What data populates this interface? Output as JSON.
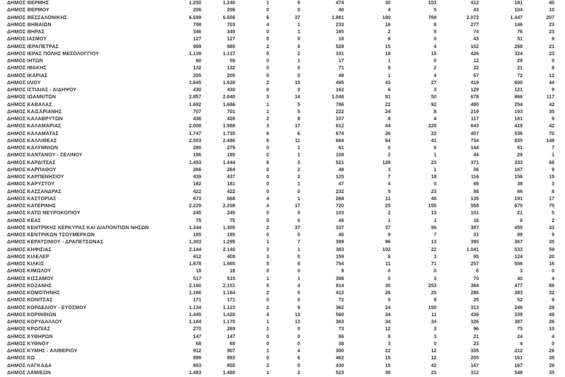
{
  "table": {
    "description": "List of Greek municipalities with numeric statistics, thousands separated by dots as rendered",
    "name_column": "municipality",
    "value_column_count": 10,
    "text_color": "#333338",
    "background_color": "#ffffff",
    "rows": [
      {
        "name": "ΔΗΜΟΣ ΘΕΡΜΗΣ",
        "values": [
          "1.250",
          "1.240",
          "1",
          "9",
          "474",
          "30",
          "103",
          "412",
          "181",
          "40"
        ]
      },
      {
        "name": "ΔΗΜΟΣ ΘΕΡΜΟΥ",
        "values": [
          "206",
          "206",
          "0",
          "0",
          "40",
          "4",
          "5",
          "43",
          "104",
          "10"
        ]
      },
      {
        "name": "ΔΗΜΟΣ ΘΕΣΣΑΛΟΝΙΚΗΣ",
        "values": [
          "6.699",
          "6.656",
          "6",
          "37",
          "1.981",
          "180",
          "769",
          "2.072",
          "1.447",
          "207"
        ]
      },
      {
        "name": "ΔΗΜΟΣ ΘΗΒΑΙΩΝ",
        "values": [
          "708",
          "703",
          "4",
          "1",
          "233",
          "16",
          "8",
          "277",
          "146",
          "23"
        ]
      },
      {
        "name": "ΔΗΜΟΣ ΘΗΡΑΣ",
        "values": [
          "346",
          "345",
          "0",
          "1",
          "165",
          "2",
          "5",
          "74",
          "76",
          "23"
        ]
      },
      {
        "name": "ΔΗΜΟΣ ΙΑΣΜΟΥ",
        "values": [
          "127",
          "127",
          "0",
          "0",
          "18",
          "6",
          "0",
          "43",
          "51",
          "9"
        ]
      },
      {
        "name": "ΔΗΜΟΣ ΙΕΡΑΠΕΤΡΑΣ",
        "values": [
          "999",
          "989",
          "2",
          "8",
          "529",
          "15",
          "4",
          "152",
          "268",
          "21"
        ]
      },
      {
        "name": "ΔΗΜΟΣ ΙΕΡΑΣ ΠΟΛΗΣ ΜΕΣΟΛΟΓΓΙΟΥ",
        "values": [
          "1.139",
          "1.137",
          "0",
          "2",
          "331",
          "18",
          "15",
          "426",
          "324",
          "23"
        ]
      },
      {
        "name": "ΔΗΜΟΣ ΙΗΤΩΝ",
        "values": [
          "60",
          "59",
          "0",
          "1",
          "17",
          "1",
          "0",
          "12",
          "29",
          "0"
        ]
      },
      {
        "name": "ΔΗΜΟΣ ΙΘΑΚΗΣ",
        "values": [
          "132",
          "132",
          "0",
          "0",
          "71",
          "8",
          "2",
          "22",
          "21",
          "8"
        ]
      },
      {
        "name": "ΔΗΜΟΣ ΙΚΑΡΙΑΣ",
        "values": [
          "205",
          "205",
          "0",
          "0",
          "49",
          "1",
          "4",
          "67",
          "72",
          "12"
        ]
      },
      {
        "name": "ΔΗΜΟΣ ΙΛΙΟΥ",
        "values": [
          "1.645",
          "1.628",
          "2",
          "15",
          "495",
          "43",
          "27",
          "419",
          "600",
          "44"
        ]
      },
      {
        "name": "ΔΗΜΟΣ ΙΣΤΙΑΙΑΣ - ΑΙΔΗΨΟΥ",
        "values": [
          "430",
          "430",
          "0",
          "0",
          "162",
          "6",
          "3",
          "129",
          "121",
          "9"
        ]
      },
      {
        "name": "ΔΗΜΟΣ ΙΩΑΝΝΙΤΩΝ",
        "values": [
          "2.857",
          "2.840",
          "3",
          "14",
          "1.048",
          "81",
          "50",
          "678",
          "866",
          "117"
        ]
      },
      {
        "name": "ΔΗΜΟΣ ΚΑΒΑΛΑΣ",
        "values": [
          "1.692",
          "1.686",
          "1",
          "5",
          "786",
          "22",
          "92",
          "490",
          "254",
          "42"
        ]
      },
      {
        "name": "ΔΗΜΟΣ ΚΑΙΣΑΡΙΑΝΗΣ",
        "values": [
          "707",
          "701",
          "1",
          "5",
          "222",
          "24",
          "8",
          "219",
          "193",
          "35"
        ]
      },
      {
        "name": "ΔΗΜΟΣ ΚΑΛΑΒΡΥΤΩΝ",
        "values": [
          "436",
          "426",
          "2",
          "8",
          "107",
          "8",
          "4",
          "117",
          "181",
          "9"
        ]
      },
      {
        "name": "ΔΗΜΟΣ ΚΑΛΑΜΑΡΙΑΣ",
        "values": [
          "2.008",
          "1.988",
          "3",
          "17",
          "612",
          "44",
          "228",
          "643",
          "419",
          "42"
        ]
      },
      {
        "name": "ΔΗΜΟΣ ΚΑΛΑΜΑΤΑΣ",
        "values": [
          "1.747",
          "1.735",
          "6",
          "6",
          "674",
          "26",
          "22",
          "407",
          "536",
          "70"
        ]
      },
      {
        "name": "ΔΗΜΟΣ ΚΑΛΛΙΘΕΑΣ",
        "values": [
          "2.503",
          "2.486",
          "6",
          "11",
          "664",
          "64",
          "41",
          "734",
          "835",
          "148"
        ]
      },
      {
        "name": "ΔΗΜΟΣ ΚΑΛΥΜΝΙΩΝ",
        "values": [
          "280",
          "279",
          "0",
          "1",
          "61",
          "0",
          "6",
          "144",
          "61",
          "7"
        ]
      },
      {
        "name": "ΔΗΜΟΣ ΚΑΝΤΑΝΟΥ - ΣΕΛΙΝΟΥ",
        "values": [
          "186",
          "185",
          "0",
          "1",
          "108",
          "2",
          "1",
          "44",
          "29",
          "1"
        ]
      },
      {
        "name": "ΔΗΜΟΣ ΚΑΡΔΙΤΣΑΣ",
        "values": [
          "1.453",
          "1.444",
          "6",
          "3",
          "521",
          "128",
          "23",
          "371",
          "333",
          "68"
        ]
      },
      {
        "name": "ΔΗΜΟΣ ΚΑΡΠΑΘΟΥ",
        "values": [
          "266",
          "264",
          "0",
          "2",
          "48",
          "3",
          "1",
          "36",
          "167",
          "9"
        ]
      },
      {
        "name": "ΔΗΜΟΣ ΚΑΡΠΕΝΗΣΙΟΥ",
        "values": [
          "439",
          "437",
          "0",
          "2",
          "125",
          "7",
          "18",
          "116",
          "156",
          "15"
        ]
      },
      {
        "name": "ΔΗΜΟΣ ΚΑΡΥΣΤΟΥ",
        "values": [
          "182",
          "181",
          "0",
          "1",
          "47",
          "4",
          "0",
          "89",
          "38",
          "3"
        ]
      },
      {
        "name": "ΔΗΜΟΣ ΚΑΣΣΑΝΔΡΑΣ",
        "values": [
          "422",
          "422",
          "0",
          "0",
          "232",
          "5",
          "23",
          "88",
          "66",
          "8"
        ]
      },
      {
        "name": "ΔΗΜΟΣ ΚΑΣΤΟΡΙΑΣ",
        "values": [
          "673",
          "668",
          "4",
          "1",
          "268",
          "11",
          "46",
          "135",
          "191",
          "17"
        ]
      },
      {
        "name": "ΔΗΜΟΣ ΚΑΤΕΡΙΝΗΣ",
        "values": [
          "2.229",
          "2.208",
          "4",
          "17",
          "720",
          "25",
          "155",
          "558",
          "675",
          "75"
        ]
      },
      {
        "name": "ΔΗΜΟΣ ΚΑΤΩ ΝΕΥΡΟΚΟΠΙΟΥ",
        "values": [
          "245",
          "245",
          "0",
          "0",
          "103",
          "2",
          "13",
          "101",
          "21",
          "5"
        ]
      },
      {
        "name": "ΔΗΜΟΣ ΚΕΑΣ",
        "values": [
          "75",
          "75",
          "0",
          "0",
          "49",
          "1",
          "1",
          "16",
          "6",
          "2"
        ]
      },
      {
        "name": "ΔΗΜΟΣ ΚΕΝΤΡΙΚΗΣ ΚΕΡΚΥΡΑΣ ΚΑΙ ΔΙΑΠΟΝΤΙΩΝ ΝΗΣΩΝ",
        "values": [
          "1.344",
          "1.305",
          "2",
          "37",
          "337",
          "37",
          "56",
          "387",
          "455",
          "33"
        ]
      },
      {
        "name": "ΔΗΜΟΣ ΚΕΝΤΡΙΚΩΝ ΤΖΟΥΜΕΡΚΩΝ",
        "values": [
          "185",
          "185",
          "0",
          "0",
          "40",
          "9",
          "7",
          "31",
          "89",
          "9"
        ]
      },
      {
        "name": "ΔΗΜΟΣ ΚΕΡΑΤΣΙΝΙΟΥ - ΔΡΑΠΕΤΣΩΝΑΣ",
        "values": [
          "1.303",
          "1.295",
          "1",
          "7",
          "389",
          "96",
          "13",
          "395",
          "367",
          "35"
        ]
      },
      {
        "name": "ΔΗΜΟΣ ΚΗΦΙΣΙΑΣ",
        "values": [
          "2.144",
          "2.140",
          "3",
          "1",
          "383",
          "102",
          "22",
          "1.041",
          "533",
          "59"
        ]
      },
      {
        "name": "ΔΗΜΟΣ ΚΙΛΕΛΕΡ",
        "values": [
          "412",
          "409",
          "3",
          "0",
          "159",
          "8",
          "3",
          "95",
          "124",
          "20"
        ]
      },
      {
        "name": "ΔΗΜΟΣ ΚΙΛΚΙΣ",
        "values": [
          "1.678",
          "1.665",
          "5",
          "8",
          "754",
          "11",
          "71",
          "257",
          "556",
          "16"
        ]
      },
      {
        "name": "ΔΗΜΟΣ ΚΙΜΩΛΟΥ",
        "values": [
          "18",
          "18",
          "0",
          "0",
          "9",
          "0",
          "0",
          "6",
          "3",
          "0"
        ]
      },
      {
        "name": "ΔΗΜΟΣ ΚΙΣΣΑΜΟΥ",
        "values": [
          "517",
          "515",
          "1",
          "1",
          "398",
          "0",
          "3",
          "70",
          "40",
          "4"
        ]
      },
      {
        "name": "ΔΗΜΟΣ ΚΟΖΑΝΗΣ",
        "values": [
          "2.160",
          "2.151",
          "5",
          "4",
          "914",
          "35",
          "253",
          "384",
          "477",
          "88"
        ]
      },
      {
        "name": "ΔΗΜΟΣ ΚΟΜΟΤΗΝΗΣ",
        "values": [
          "1.166",
          "1.164",
          "2",
          "0",
          "412",
          "26",
          "25",
          "286",
          "383",
          "32"
        ]
      },
      {
        "name": "ΔΗΜΟΣ ΚΟΝΙΤΣΑΣ",
        "values": [
          "171",
          "171",
          "0",
          "0",
          "72",
          "5",
          "8",
          "25",
          "52",
          "9"
        ]
      },
      {
        "name": "ΔΗΜΟΣ ΚΟΡΔΕΛΙΟΥ - ΕΥΟΣΜΟΥ",
        "values": [
          "1.134",
          "1.123",
          "2",
          "9",
          "362",
          "24",
          "150",
          "313",
          "246",
          "28"
        ]
      },
      {
        "name": "ΔΗΜΟΣ ΚΟΡΙΝΘΙΩΝ",
        "values": [
          "1.445",
          "1.428",
          "4",
          "13",
          "560",
          "34",
          "11",
          "436",
          "339",
          "48"
        ]
      },
      {
        "name": "ΔΗΜΟΣ ΚΟΡΥΔΑΛΛΟΥ",
        "values": [
          "1.184",
          "1.170",
          "1",
          "13",
          "363",
          "34",
          "34",
          "326",
          "387",
          "26"
        ]
      },
      {
        "name": "ΔΗΜΟΣ ΚΡΩΠΙΑΣ",
        "values": [
          "270",
          "269",
          "1",
          "0",
          "73",
          "12",
          "3",
          "96",
          "75",
          "10"
        ]
      },
      {
        "name": "ΔΗΜΟΣ ΚΥΘΗΡΩΝ",
        "values": [
          "147",
          "147",
          "0",
          "0",
          "86",
          "9",
          "3",
          "21",
          "24",
          "4"
        ]
      },
      {
        "name": "ΔΗΜΟΣ ΚΥΘΝΟΥ",
        "values": [
          "68",
          "68",
          "0",
          "0",
          "38",
          "3",
          "0",
          "23",
          "4",
          "0"
        ]
      },
      {
        "name": "ΔΗΜΟΣ ΚΥΜΗΣ - ΑΛΙΒΕΡΙΟΥ",
        "values": [
          "912",
          "907",
          "1",
          "4",
          "300",
          "22",
          "12",
          "335",
          "212",
          "26"
        ]
      },
      {
        "name": "ΔΗΜΟΣ ΚΩ",
        "values": [
          "899",
          "893",
          "0",
          "6",
          "462",
          "15",
          "12",
          "205",
          "161",
          "38"
        ]
      },
      {
        "name": "ΔΗΜΟΣ ΛΑΓΚΑΔΑ",
        "values": [
          "853",
          "850",
          "3",
          "0",
          "430",
          "15",
          "42",
          "167",
          "167",
          "29"
        ]
      },
      {
        "name": "ΔΗΜΟΣ ΛΑΜΙΕΩΝ",
        "values": [
          "1.483",
          "1.480",
          "1",
          "2",
          "523",
          "39",
          "23",
          "312",
          "548",
          "35"
        ]
      }
    ]
  }
}
